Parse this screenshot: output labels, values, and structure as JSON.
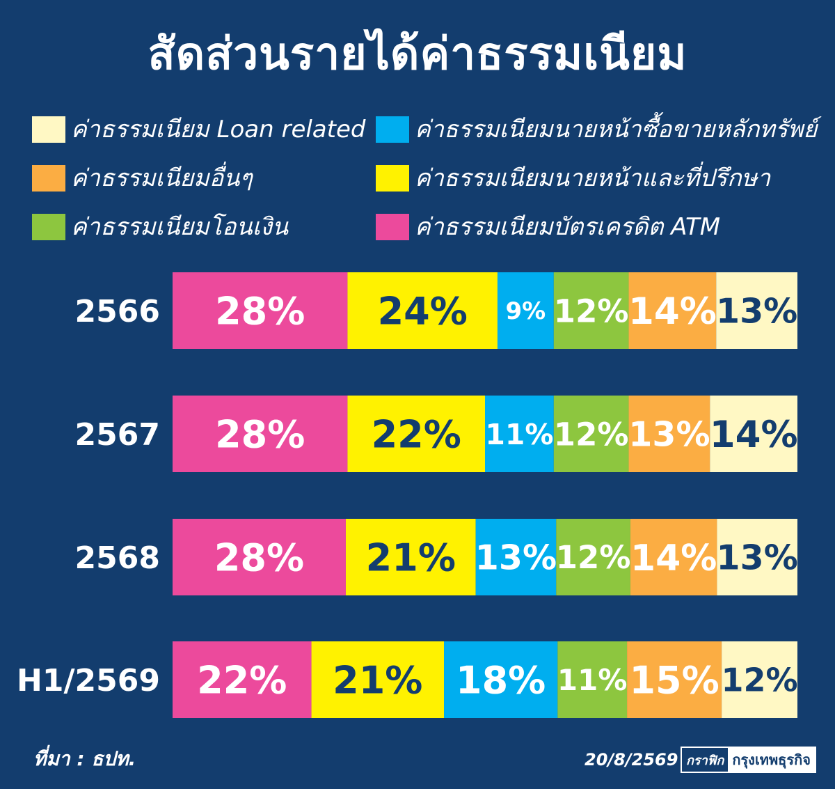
{
  "title": "สัดส่วนรายได้ค่าธรรมเนียม",
  "legend": [
    {
      "label": "ค่าธรรมเนียม Loan related",
      "color": "#fff8c4"
    },
    {
      "label": "ค่าธรรมเนียมนายหน้าซื้อขายหลักทรัพย์",
      "color": "#00aeef"
    },
    {
      "label": "ค่าธรรมเนียมอื่นๆ",
      "color": "#fbad43"
    },
    {
      "label": "ค่าธรรมเนียมนายหน้าและที่ปรึกษา",
      "color": "#fff200"
    },
    {
      "label": "ค่าธรรมเนียมโอนเงิน",
      "color": "#8dc63f"
    },
    {
      "label": "ค่าธรรมเนียมบัตรเครดิต ATM",
      "color": "#ec4a9c"
    }
  ],
  "chart_data": {
    "type": "bar",
    "orientation": "horizontal",
    "stacked": true,
    "categories": [
      "2566",
      "2567",
      "2568",
      "H1/2569"
    ],
    "series": [
      {
        "name": "ค่าธรรมเนียมบัตรเครดิต ATM",
        "color": "#ec4a9c",
        "label_color": "#ffffff",
        "values": [
          28,
          28,
          28,
          22
        ]
      },
      {
        "name": "ค่าธรรมเนียมนายหน้าและที่ปรึกษา",
        "color": "#fff200",
        "label_color": "#133d6e",
        "values": [
          24,
          22,
          21,
          21
        ]
      },
      {
        "name": "ค่าธรรมเนียมนายหน้าซื้อขายหลักทรัพย์",
        "color": "#00aeef",
        "label_color": "#ffffff",
        "values": [
          9,
          11,
          13,
          18
        ]
      },
      {
        "name": "ค่าธรรมเนียมโอนเงิน",
        "color": "#8dc63f",
        "label_color": "#ffffff",
        "values": [
          12,
          12,
          12,
          11
        ]
      },
      {
        "name": "ค่าธรรมเนียมอื่นๆ",
        "color": "#fbad43",
        "label_color": "#ffffff",
        "values": [
          14,
          13,
          14,
          15
        ]
      },
      {
        "name": "ค่าธรรมเนียม Loan related",
        "color": "#fff8c4",
        "label_color": "#133d6e",
        "values": [
          13,
          14,
          13,
          12
        ]
      }
    ],
    "unit": "%"
  },
  "footer": {
    "source": "ที่มา : ธปท.",
    "date": "20/8/2569",
    "credit_left": "กราฟิก",
    "credit_right": "กรุงเทพธุรกิจ"
  }
}
